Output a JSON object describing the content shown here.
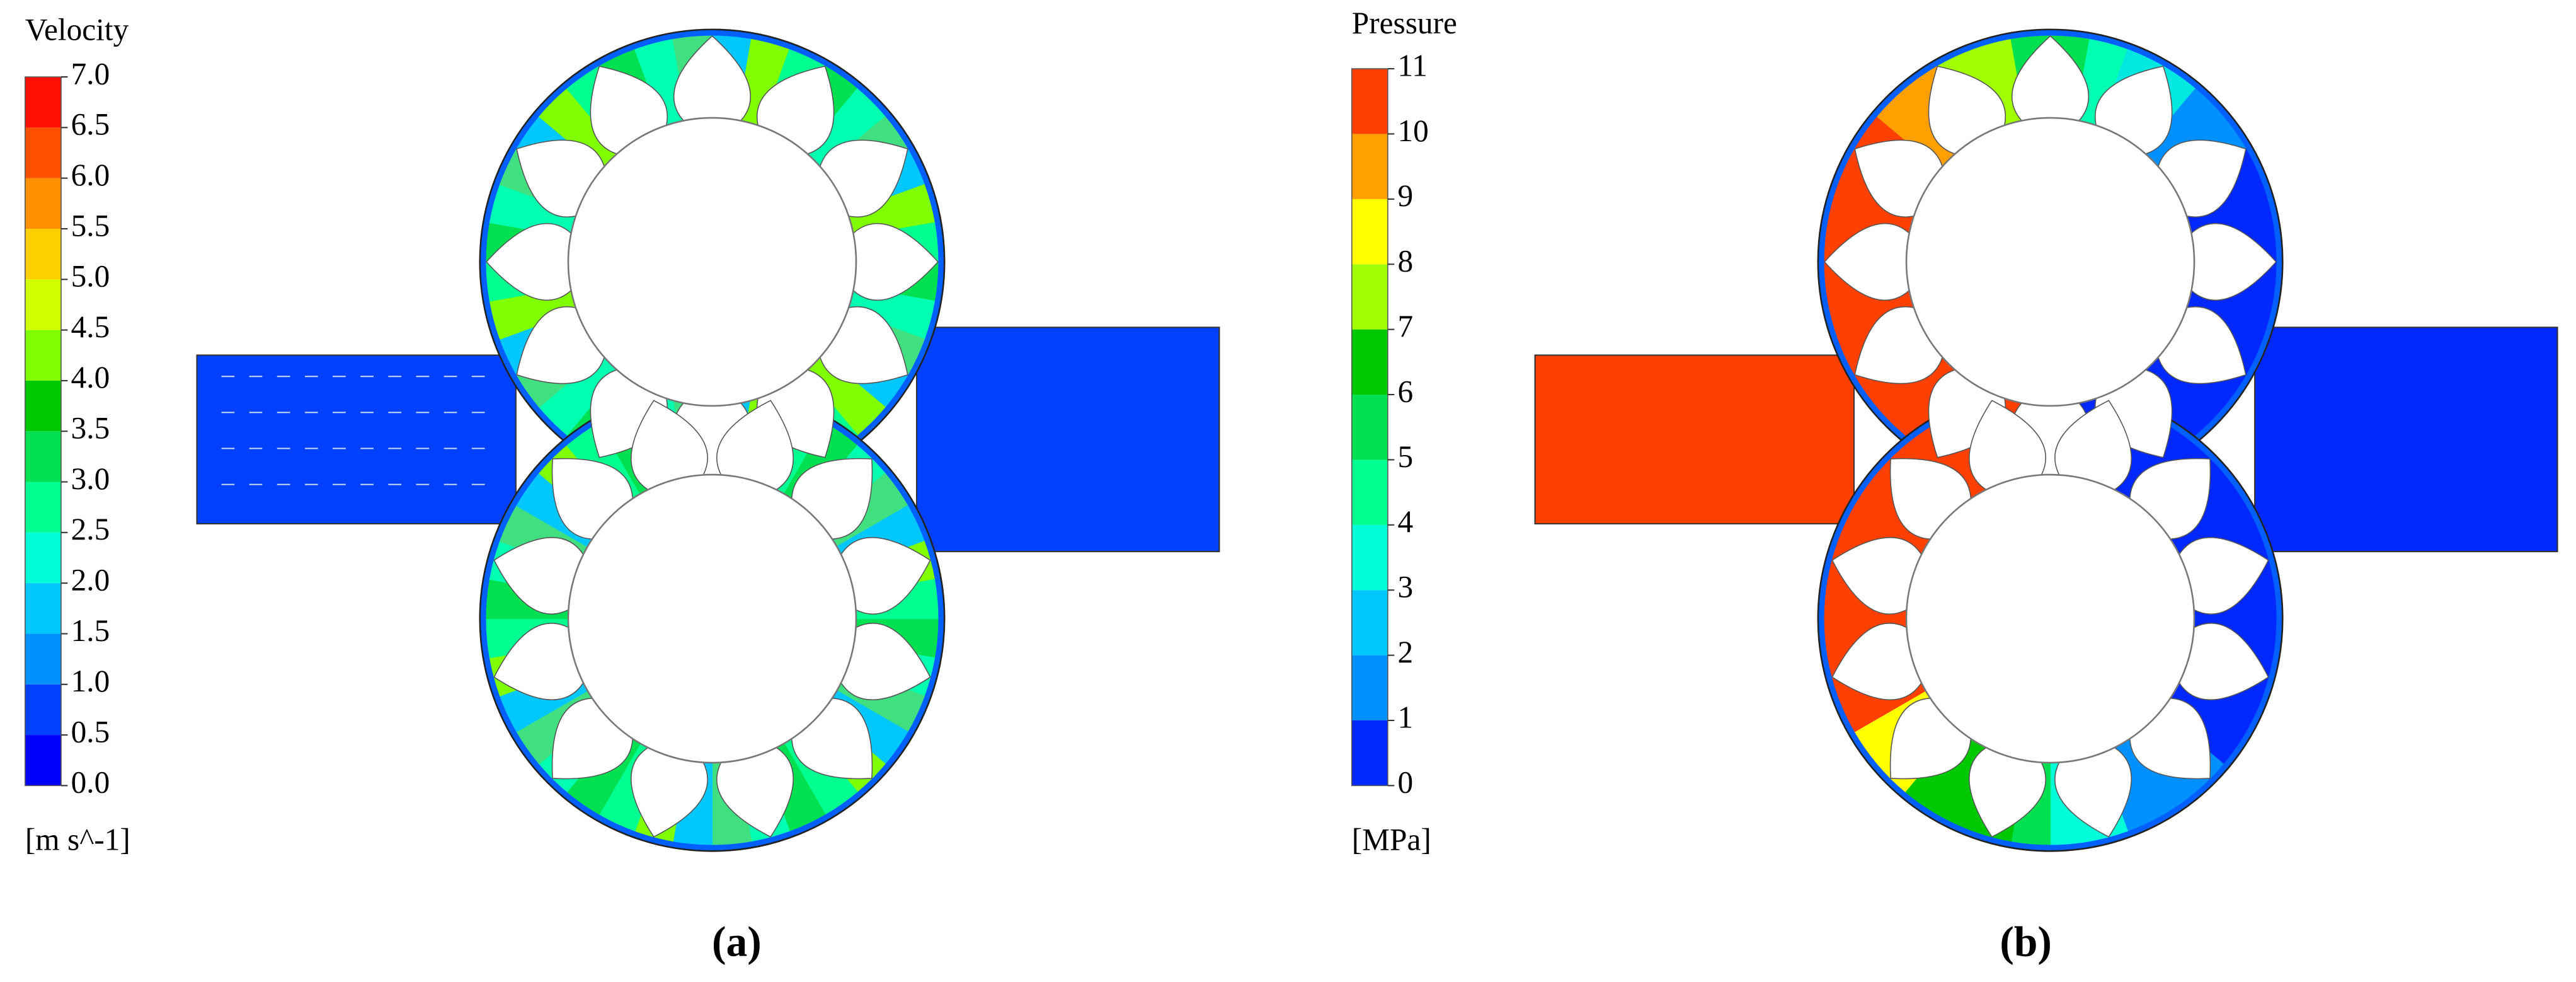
{
  "panels": [
    {
      "label": "(a)",
      "legend": {
        "title": "Velocity",
        "unit": "[m s^-1]",
        "ticks": [
          {
            "value": 0,
            "label": "0.0"
          },
          {
            "value": 0.5,
            "label": "0.5"
          },
          {
            "value": 1,
            "label": "1.0"
          },
          {
            "value": 1.5,
            "label": "1.5"
          },
          {
            "value": 2,
            "label": "2.0"
          },
          {
            "value": 2.5,
            "label": "2.5"
          },
          {
            "value": 3,
            "label": "3.0"
          },
          {
            "value": 3.5,
            "label": "3.5"
          },
          {
            "value": 4,
            "label": "4.0"
          },
          {
            "value": 4.5,
            "label": "4.5"
          },
          {
            "value": 5,
            "label": "5.0"
          },
          {
            "value": 5.5,
            "label": "5.5"
          },
          {
            "value": 6,
            "label": "6.0"
          },
          {
            "value": 6.5,
            "label": "6.5"
          },
          {
            "value": 7,
            "label": "7.0"
          }
        ],
        "colors": [
          "#0000ff",
          "#0040ff",
          "#0090ff",
          "#00c8ff",
          "#00ffd8",
          "#00ff90",
          "#00e050",
          "#00c800",
          "#80ff00",
          "#d0ff00",
          "#ffd000",
          "#ff9000",
          "#ff5000",
          "#ff1000"
        ]
      }
    },
    {
      "label": "(b)",
      "legend": {
        "title": "Pressure",
        "unit": "[MPa]",
        "ticks": [
          0,
          1,
          2,
          3,
          4,
          5,
          6,
          7,
          8,
          9,
          10,
          11
        ],
        "colors": [
          "#0028ff",
          "#0090ff",
          "#00c8ff",
          "#00ffd8",
          "#00ff90",
          "#00e050",
          "#00c800",
          "#a0ff00",
          "#ffff00",
          "#ffa000",
          "#ff4000"
        ]
      }
    }
  ]
}
